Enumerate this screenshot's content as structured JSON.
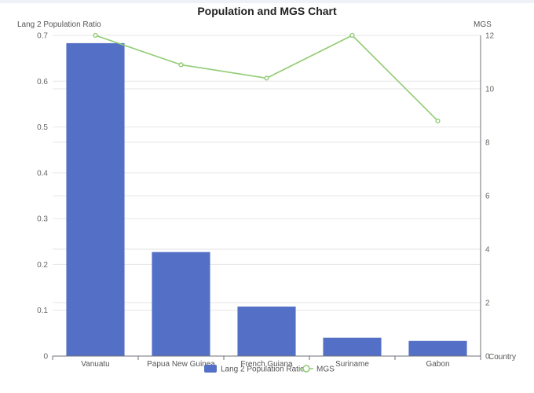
{
  "chart_data": {
    "type": "bar",
    "title": "Population and MGS Chart",
    "xlabel": "Country",
    "categories": [
      "Vanuatu",
      "Papua New Guinea",
      "French Guiana",
      "Suriname",
      "Gabon"
    ],
    "series": [
      {
        "name": "Lang 2 Population Ratio",
        "type": "bar",
        "axis": "left",
        "color": "#5470c6",
        "values": [
          0.683,
          0.227,
          0.108,
          0.04,
          0.033
        ]
      },
      {
        "name": "MGS",
        "type": "line",
        "axis": "right",
        "color": "#91cc75",
        "values": [
          12,
          10.9,
          10.4,
          12,
          8.8
        ]
      }
    ],
    "y_left": {
      "label": "Lang 2 Population Ratio",
      "ylim": [
        0,
        0.7
      ],
      "ticks": [
        "0",
        "0.1",
        "0.2",
        "0.3",
        "0.4",
        "0.5",
        "0.6",
        "0.7"
      ]
    },
    "y_right": {
      "label": "MGS",
      "ylim": [
        0,
        12
      ],
      "ticks": [
        "0",
        "2",
        "4",
        "6",
        "8",
        "10",
        "12"
      ]
    },
    "legend": {
      "placement": "bottom-center",
      "items": [
        "Lang 2 Population Ratio",
        "MGS"
      ]
    },
    "grid": true
  }
}
